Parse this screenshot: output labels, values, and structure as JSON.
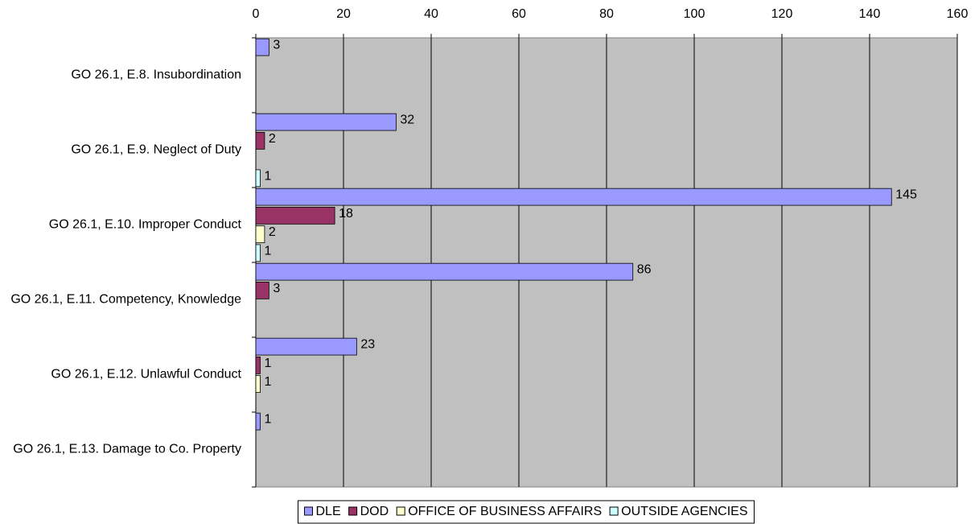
{
  "chart_data": {
    "type": "hbar",
    "categories": [
      "GO 26.1, E.8. Insubordination",
      "GO 26.1, E.9. Neglect of Duty",
      "GO 26.1, E.10. Improper Conduct",
      "GO 26.1, E.11. Competency, Knowledge",
      "GO 26.1, E.12. Unlawful Conduct",
      "GO 26.1, E.13. Damage to Co. Property"
    ],
    "series": [
      {
        "name": "DLE",
        "color": "#9999ff",
        "values": [
          3,
          32,
          145,
          86,
          23,
          1
        ]
      },
      {
        "name": "DOD",
        "color": "#993366",
        "values": [
          null,
          2,
          18,
          3,
          1,
          null
        ]
      },
      {
        "name": "OFFICE OF BUSINESS AFFAIRS",
        "color": "#ffffcc",
        "values": [
          null,
          null,
          2,
          null,
          1,
          null
        ]
      },
      {
        "name": "OUTSIDE AGENCIES",
        "color": "#ccffff",
        "values": [
          null,
          1,
          1,
          null,
          null,
          null
        ]
      }
    ],
    "xlim": [
      0,
      160
    ],
    "xticks": [
      0,
      20,
      40,
      60,
      80,
      100,
      120,
      140,
      160
    ],
    "grid": true,
    "legend": "bottom"
  }
}
